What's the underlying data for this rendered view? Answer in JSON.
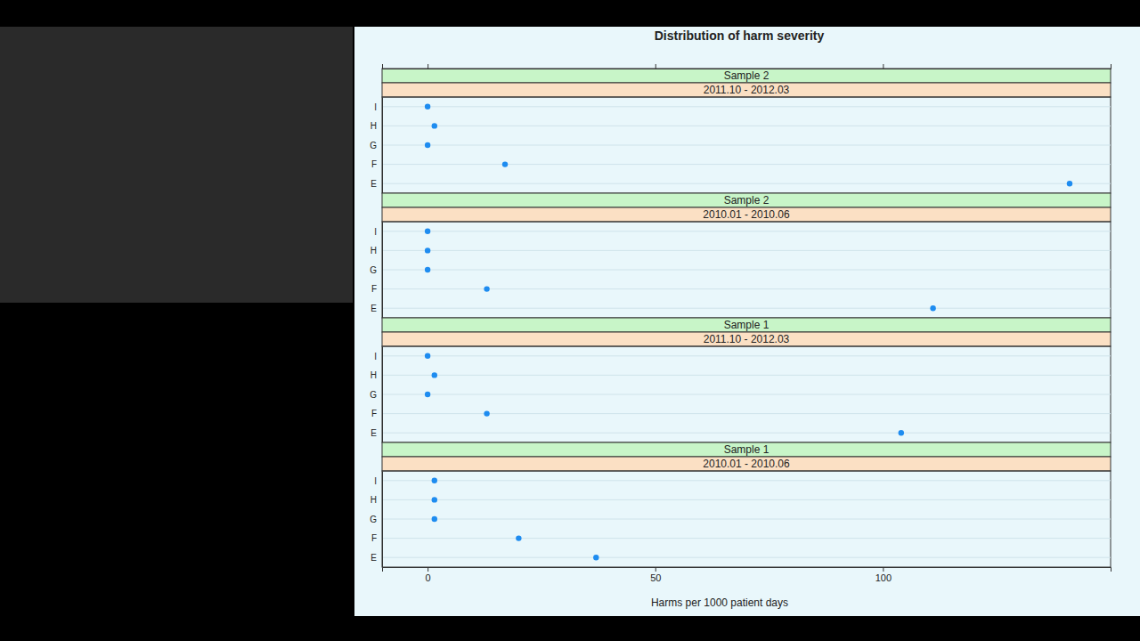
{
  "chart_data": {
    "type": "dot",
    "title": "Distribution of harm severity",
    "x_label": "Harms per 1000 patient days",
    "xlim": [
      -10,
      150
    ],
    "xticks": [
      0,
      50,
      100
    ],
    "grid": true,
    "color": "#1e8cf0",
    "panels": [
      {
        "sample": "Sample 2",
        "period": "2011.10 - 2012.03",
        "categories": [
          "I",
          "H",
          "G",
          "F",
          "E"
        ],
        "values": [
          0,
          1.5,
          0,
          17,
          141
        ]
      },
      {
        "sample": "Sample 2",
        "period": "2010.01 - 2010.06",
        "categories": [
          "I",
          "H",
          "G",
          "F",
          "E"
        ],
        "values": [
          0,
          0,
          0,
          13,
          111
        ]
      },
      {
        "sample": "Sample 1",
        "period": "2011.10 - 2012.03",
        "categories": [
          "I",
          "H",
          "G",
          "F",
          "E"
        ],
        "values": [
          0,
          1.5,
          0,
          13,
          104
        ]
      },
      {
        "sample": "Sample 1",
        "period": "2010.01 - 2010.06",
        "categories": [
          "I",
          "H",
          "G",
          "F",
          "E"
        ],
        "values": [
          1.5,
          1.5,
          1.5,
          20,
          37
        ]
      }
    ]
  }
}
